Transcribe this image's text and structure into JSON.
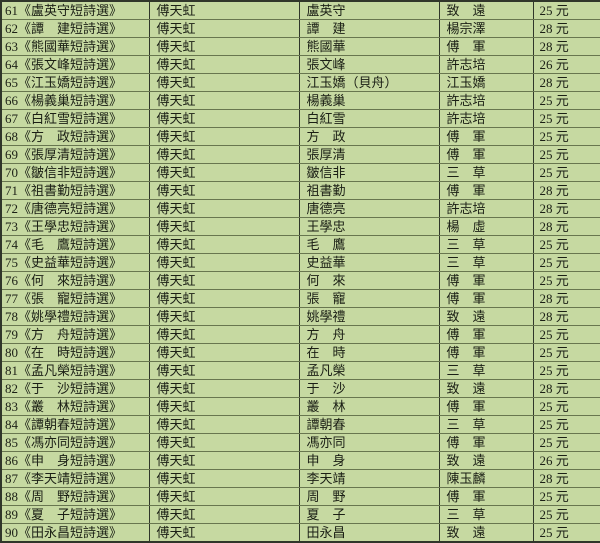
{
  "colors": {
    "background": "#c6d9a1",
    "grid_vertical": "#30362a",
    "grid_horizontal": "#68764f",
    "text": "#1b1f15"
  },
  "table": {
    "rows": [
      {
        "no": "61",
        "title": "《盧英守短詩選》",
        "editor": "傅天虹",
        "author": "盧英守",
        "translator": "致　遠",
        "price": "25 元"
      },
      {
        "no": "62",
        "title": "《譚　建短詩選》",
        "editor": "傅天虹",
        "author": "譚　建",
        "translator": "楊宗澤",
        "price": "28 元"
      },
      {
        "no": "63",
        "title": "《熊國華短詩選》",
        "editor": "傅天虹",
        "author": "熊國華",
        "translator": "傅　軍",
        "price": "28 元"
      },
      {
        "no": "64",
        "title": "《張文峰短詩選》",
        "editor": "傅天虹",
        "author": "張文峰",
        "translator": "許志培",
        "price": "26 元"
      },
      {
        "no": "65",
        "title": "《江玉嬌短詩選》",
        "editor": "傅天虹",
        "author": "江玉嬌（貝舟）",
        "translator": "江玉嬌",
        "price": "28 元"
      },
      {
        "no": "66",
        "title": "《楊義巢短詩選》",
        "editor": "傅天虹",
        "author": "楊義巢",
        "translator": "許志培",
        "price": "25 元"
      },
      {
        "no": "67",
        "title": "《白紅雪短詩選》",
        "editor": "傅天虹",
        "author": "白紅雪",
        "translator": "許志培",
        "price": "25 元"
      },
      {
        "no": "68",
        "title": "《方　政短詩選》",
        "editor": "傅天虹",
        "author": "方　政",
        "translator": "傅　軍",
        "price": "25 元"
      },
      {
        "no": "69",
        "title": "《張厚清短詩選》",
        "editor": "傅天虹",
        "author": "張厚清",
        "translator": "傅　軍",
        "price": "25 元"
      },
      {
        "no": "70",
        "title": "《皺信非短詩選》",
        "editor": "傅天虹",
        "author": "皺信非",
        "translator": "三　草",
        "price": "25 元"
      },
      {
        "no": "71",
        "title": "《祖書勤短詩選》",
        "editor": "傅天虹",
        "author": "祖書勤",
        "translator": "傅　軍",
        "price": "28 元"
      },
      {
        "no": "72",
        "title": "《唐德亮短詩選》",
        "editor": "傅天虹",
        "author": "唐德亮",
        "translator": "許志培",
        "price": "28 元"
      },
      {
        "no": "73",
        "title": "《王學忠短詩選》",
        "editor": "傅天虹",
        "author": "王學忠",
        "translator": "楊　虛",
        "price": "28 元"
      },
      {
        "no": "74",
        "title": "《毛　鷹短詩選》",
        "editor": "傅天虹",
        "author": "毛　鷹",
        "translator": "三　草",
        "price": "25 元"
      },
      {
        "no": "75",
        "title": "《史益華短詩選》",
        "editor": "傅天虹",
        "author": "史益華",
        "translator": "三　草",
        "price": "25 元"
      },
      {
        "no": "76",
        "title": "《何　來短詩選》",
        "editor": "傅天虹",
        "author": "何　來",
        "translator": "傅　軍",
        "price": "25 元"
      },
      {
        "no": "77",
        "title": "《張　寵短詩選》",
        "editor": "傅天虹",
        "author": "張　寵",
        "translator": "傅　軍",
        "price": "28 元"
      },
      {
        "no": "78",
        "title": "《姚學禮短詩選》",
        "editor": "傅天虹",
        "author": "姚學禮",
        "translator": "致　遠",
        "price": "28 元"
      },
      {
        "no": "79",
        "title": "《方　舟短詩選》",
        "editor": "傅天虹",
        "author": "方　舟",
        "translator": "傅　軍",
        "price": "25 元"
      },
      {
        "no": "80",
        "title": "《在　時短詩選》",
        "editor": "傅天虹",
        "author": "在　時",
        "translator": "傅　軍",
        "price": "25 元"
      },
      {
        "no": "81",
        "title": "《孟凡榮短詩選》",
        "editor": "傅天虹",
        "author": "孟凡榮",
        "translator": "三　草",
        "price": "25 元"
      },
      {
        "no": "82",
        "title": "《于　沙短詩選》",
        "editor": "傅天虹",
        "author": "于　沙",
        "translator": "致　遠",
        "price": "28 元"
      },
      {
        "no": "83",
        "title": "《叢　林短詩選》",
        "editor": "傅天虹",
        "author": "叢　林",
        "translator": "傅　軍",
        "price": "25 元"
      },
      {
        "no": "84",
        "title": "《譚朝春短詩選》",
        "editor": "傅天虹",
        "author": "譚朝春",
        "translator": "三　草",
        "price": "25 元"
      },
      {
        "no": "85",
        "title": "《馮亦同短詩選》",
        "editor": "傅天虹",
        "author": "馮亦同",
        "translator": "傅　軍",
        "price": "25 元"
      },
      {
        "no": "86",
        "title": "《申　身短詩選》",
        "editor": "傅天虹",
        "author": "申　身",
        "translator": "致　遠",
        "price": "26 元"
      },
      {
        "no": "87",
        "title": "《李天靖短詩選》",
        "editor": "傅天虹",
        "author": "李天靖",
        "translator": "陳玉麟",
        "price": "28 元"
      },
      {
        "no": "88",
        "title": "《周　野短詩選》",
        "editor": "傅天虹",
        "author": "周　野",
        "translator": "傅　軍",
        "price": "25 元"
      },
      {
        "no": "89",
        "title": "《夏　子短詩選》",
        "editor": "傅天虹",
        "author": "夏　子",
        "translator": "三　草",
        "price": "25 元"
      },
      {
        "no": "90",
        "title": "《田永昌短詩選》",
        "editor": "傅天虹",
        "author": "田永昌",
        "translator": "致　遠",
        "price": "25 元"
      }
    ]
  }
}
